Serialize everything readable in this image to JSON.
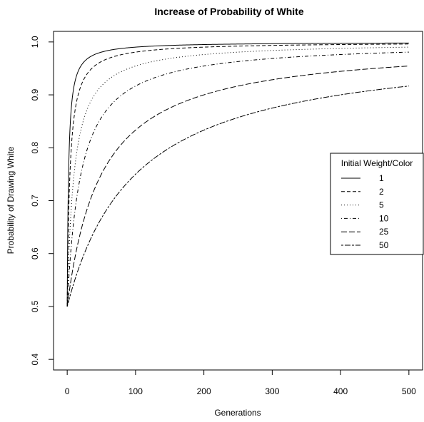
{
  "chart_data": {
    "type": "line",
    "title": "Increase of Probability of White",
    "xlabel": "Generations",
    "ylabel": "Probability of Drawing White",
    "xlim": [
      -20,
      520
    ],
    "ylim": [
      0.38,
      1.02
    ],
    "xticks": [
      0,
      100,
      200,
      300,
      400,
      500
    ],
    "yticks": [
      0.4,
      0.5,
      0.6,
      0.7,
      0.8,
      0.9,
      1.0
    ],
    "ytick_labels": [
      "0.4",
      "0.5",
      "0.6",
      "0.7",
      "0.8",
      "0.9",
      "1.0"
    ],
    "grid": false,
    "legend": {
      "title": "Initial Weight/Color",
      "position": "right"
    },
    "series": [
      {
        "name": "1",
        "weight": 1,
        "dash": "solid",
        "x": [
          0,
          5,
          10,
          20,
          50,
          100,
          200,
          300,
          400,
          500
        ],
        "y": [
          0.5,
          0.846,
          0.917,
          0.955,
          0.981,
          0.99,
          0.995,
          0.997,
          0.998,
          0.998
        ]
      },
      {
        "name": "2",
        "weight": 2,
        "dash": "dashed",
        "x": [
          0,
          5,
          10,
          20,
          50,
          100,
          200,
          300,
          400,
          500
        ],
        "y": [
          0.5,
          0.778,
          0.857,
          0.917,
          0.963,
          0.981,
          0.99,
          0.993,
          0.995,
          0.996
        ]
      },
      {
        "name": "5",
        "weight": 5,
        "dash": "dotted",
        "x": [
          0,
          5,
          10,
          20,
          50,
          100,
          200,
          300,
          400,
          500
        ],
        "y": [
          0.5,
          0.667,
          0.75,
          0.833,
          0.917,
          0.955,
          0.976,
          0.984,
          0.988,
          0.99
        ]
      },
      {
        "name": "10",
        "weight": 10,
        "dash": "dotdash",
        "x": [
          0,
          5,
          10,
          20,
          50,
          100,
          200,
          300,
          400,
          500
        ],
        "y": [
          0.5,
          0.6,
          0.667,
          0.75,
          0.857,
          0.917,
          0.955,
          0.969,
          0.976,
          0.981
        ]
      },
      {
        "name": "25",
        "weight": 25,
        "dash": "longdash",
        "x": [
          0,
          5,
          10,
          20,
          50,
          100,
          200,
          300,
          400,
          500
        ],
        "y": [
          0.5,
          0.545,
          0.583,
          0.643,
          0.75,
          0.833,
          0.9,
          0.929,
          0.944,
          0.955
        ]
      },
      {
        "name": "50",
        "weight": 50,
        "dash": "twodash",
        "x": [
          0,
          5,
          10,
          20,
          50,
          100,
          200,
          300,
          400,
          500
        ],
        "y": [
          0.5,
          0.524,
          0.545,
          0.583,
          0.667,
          0.75,
          0.833,
          0.875,
          0.9,
          0.917
        ]
      }
    ]
  }
}
